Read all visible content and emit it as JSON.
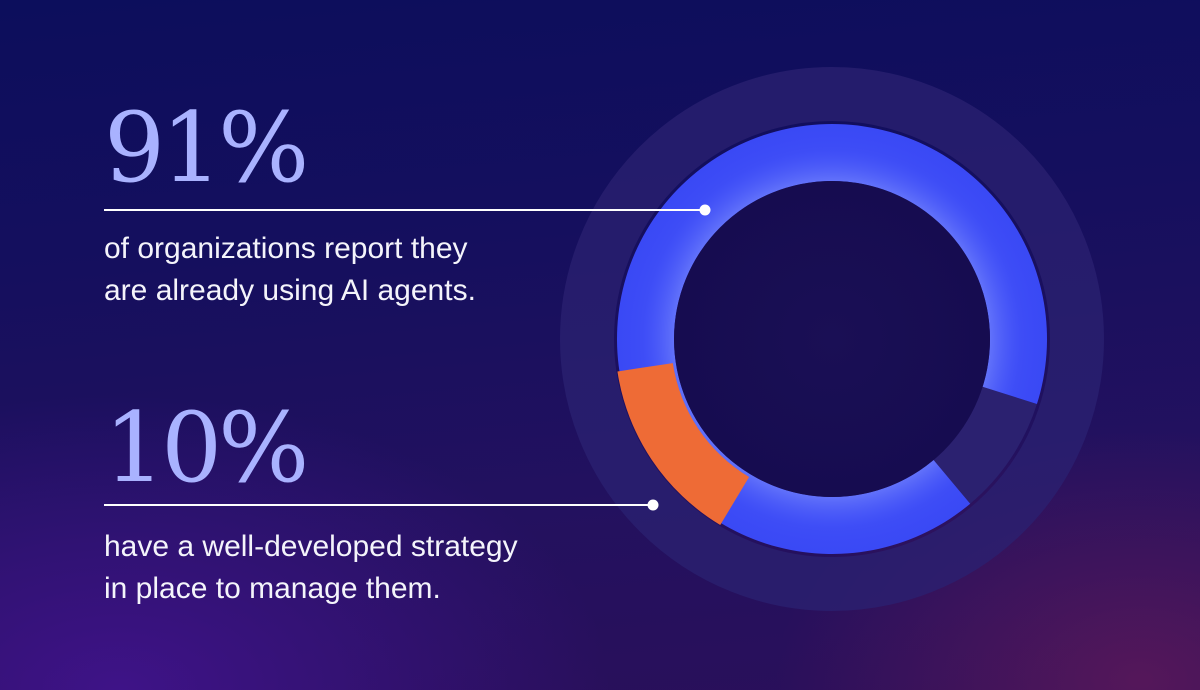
{
  "colors": {
    "primary": "#3a49f5",
    "highlight": "#ee6b36",
    "track": "#2d2370",
    "value_text": "#a9b2ff",
    "body_text": "#f4f4fb"
  },
  "stats": [
    {
      "value": "91%",
      "description_lines": [
        "of organizations report they",
        "are already using AI agents."
      ]
    },
    {
      "value": "10%",
      "description_lines": [
        "have a well-developed strategy",
        "in place to manage them."
      ]
    }
  ],
  "chart_data": {
    "type": "pie",
    "subtype": "nested-donut",
    "rings": [
      {
        "name": "",
        "values": [
          91,
          9
        ],
        "labels": [
          "91%",
          ""
        ],
        "colors": [
          "#3a49f5",
          "#2d2370"
        ]
      },
      {
        "name": "",
        "values": [
          10,
          90
        ],
        "labels": [
          "10%",
          ""
        ],
        "colors": [
          "#ee6b36",
          "#2a1f66"
        ]
      }
    ],
    "title": "",
    "legend": "none"
  }
}
